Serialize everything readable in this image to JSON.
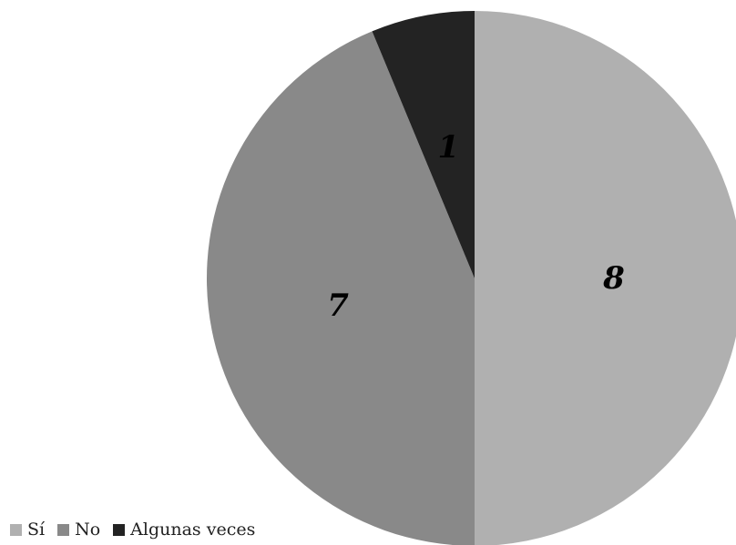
{
  "chart_data": {
    "type": "pie",
    "categories": [
      "Sí",
      "No",
      "Algunas veces"
    ],
    "values": [
      8,
      7,
      1
    ],
    "data_labels": [
      "8",
      "7",
      "1"
    ],
    "colors": [
      "#b0b0b0",
      "#898989",
      "#232323"
    ],
    "start": "12 o'clock, clockwise",
    "legend": "bottom-left"
  }
}
